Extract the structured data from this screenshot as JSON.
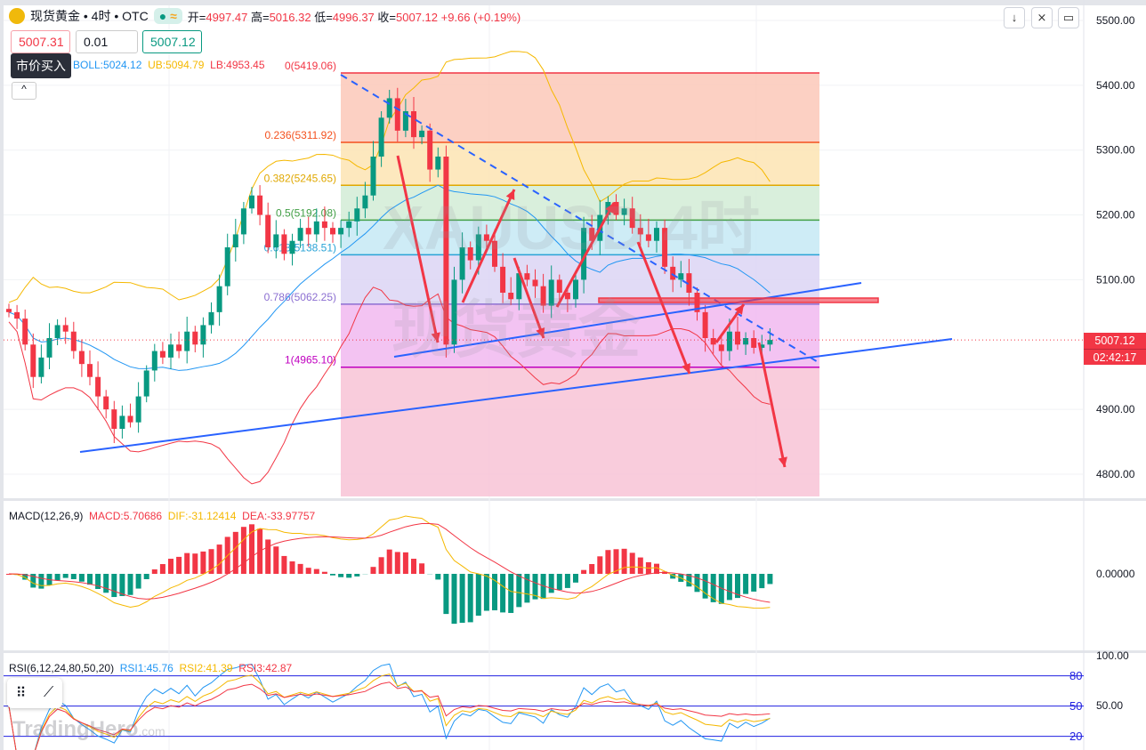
{
  "header": {
    "symbol": "现货黄金 • 4时 • OTC",
    "status_icon": "≈",
    "open_label": "开=",
    "open": "4997.47",
    "high_label": "高=",
    "high": "5016.32",
    "low_label": "低=",
    "low": "4996.37",
    "close_label": "收=",
    "close": "5007.12",
    "change": "+9.66 (+0.19%)"
  },
  "trade": {
    "sell_price": "5007.31",
    "quantity": "0.01",
    "buy_price": "5007.12",
    "tooltip": "市价买入",
    "collapse": "^"
  },
  "boll_legend": {
    "mid": "BOLL:5024.12",
    "ub": "UB:5094.79",
    "lb": "LB:4953.45"
  },
  "toolbar": {
    "down": "↓",
    "compress": "⨯",
    "fullscreen": "▭"
  },
  "watermark": {
    "symbol": "XAUUSD 4时",
    "name": "现货黄金",
    "brand": "TradingHero",
    ".com": ".com"
  },
  "current": {
    "price": "5007.12",
    "countdown": "02:42:17"
  },
  "colors": {
    "up": "#089981",
    "down": "#f23645",
    "boll_mid": "#2196f3",
    "boll_ub": "#f5b800",
    "boll_lb": "#f23645"
  },
  "chart_data": {
    "type": "candlestick",
    "price_axis": [
      "5500.00",
      "5400.00",
      "5300.00",
      "5200.00",
      "5100.00",
      "4900.00",
      "4800.00"
    ],
    "price_axis_values": [
      5500,
      5400,
      5300,
      5200,
      5100,
      4900,
      4800
    ],
    "ylim": [
      4733,
      5520
    ],
    "closes": [
      5050,
      5040,
      5000,
      4950,
      4980,
      5010,
      5030,
      5020,
      4990,
      4970,
      4950,
      4920,
      4900,
      4870,
      4890,
      4880,
      4920,
      4960,
      4990,
      4980,
      5000,
      4990,
      5020,
      5000,
      5030,
      5050,
      5090,
      5150,
      5170,
      5210,
      5230,
      5200,
      5150,
      5170,
      5140,
      5160,
      5180,
      5170,
      5190,
      5180,
      5170,
      5180,
      5190,
      5210,
      5230,
      5290,
      5350,
      5380,
      5330,
      5360,
      5320,
      5330,
      5270,
      5290,
      5000,
      5100,
      5150,
      5130,
      5170,
      5160,
      5120,
      5080,
      5070,
      5110,
      5100,
      5090,
      5060,
      5100,
      5080,
      5070,
      5100,
      5180,
      5160,
      5200,
      5220,
      5200,
      5210,
      5180,
      5170,
      5160,
      5180,
      5120,
      5100,
      5110,
      5080,
      5050,
      5010,
      5000,
      4990,
      5020,
      5000,
      5010,
      4995,
      5000,
      5007.12
    ],
    "fib": [
      {
        "label": "0(5419.06)",
        "v": 5419.06,
        "color": "#f23645",
        "fill": "#fcc8b8"
      },
      {
        "label": "0.236(5311.92)",
        "v": 5311.92,
        "color": "#f4511e",
        "fill": "#fde4b3"
      },
      {
        "label": "0.382(5245.65)",
        "v": 5245.65,
        "color": "#e0a800",
        "fill": "#d2ecd6"
      },
      {
        "label": "0.5(5192.08)",
        "v": 5192.08,
        "color": "#43a047",
        "fill": "#c6e9f4"
      },
      {
        "label": "0.618(5138.51)",
        "v": 5138.51,
        "color": "#29a3d6",
        "fill": "#dcd5f4"
      },
      {
        "label": "0.786(5062.25)",
        "v": 5062.25,
        "color": "#8c6fd1",
        "fill": "#f1b9f0"
      },
      {
        "label": "1(4965.10)",
        "v": 4965.1,
        "color": "#c000c0",
        "fill": "#f8c3d6"
      }
    ],
    "macd": {
      "title": "MACD(12,26,9)",
      "macd": "MACD:5.70686",
      "dif": "DIF:-31.12414",
      "dea": "DEA:-33.97757",
      "zero_label": "0.00000"
    },
    "rsi": {
      "title": "RSI(6,12,24,80,50,20)",
      "rsi1": "RSI1:45.76",
      "rsi2": "RSI2:41.39",
      "rsi3": "RSI3:42.87",
      "axis_100": "100.00",
      "axis_50": "50.00",
      "l80": "80",
      "l50": "50",
      "l20": "20"
    }
  }
}
